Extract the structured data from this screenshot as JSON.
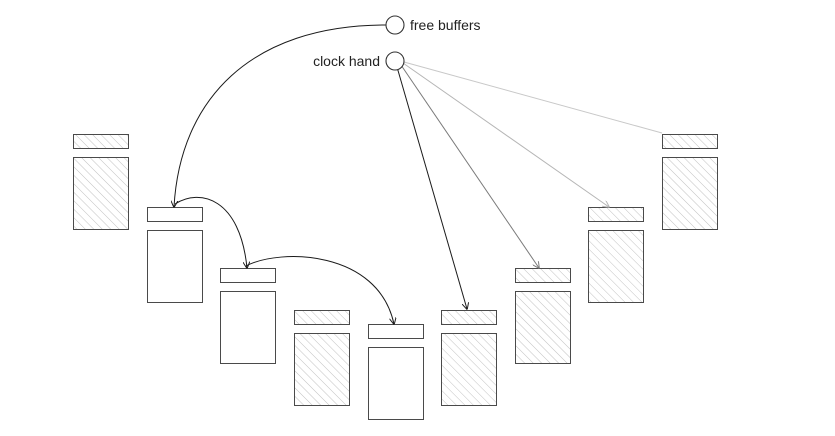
{
  "labels": {
    "free_buffers": "free buffers",
    "clock_hand": "clock hand"
  },
  "colors": {
    "stroke": "#4a4a4a",
    "hatch": "#bdbdbd",
    "arrow_dark": "#1a1a1a",
    "arrow_mid": "#7a7a7a",
    "arrow_light": "#b5b5b5"
  },
  "buffers": [
    {
      "id": 1,
      "used": true
    },
    {
      "id": 2,
      "used": false
    },
    {
      "id": 3,
      "used": false
    },
    {
      "id": 4,
      "used": true
    },
    {
      "id": 5,
      "used": false
    },
    {
      "id": 6,
      "used": true
    },
    {
      "id": 7,
      "used": true
    },
    {
      "id": 8,
      "used": true
    },
    {
      "id": 9,
      "used": true
    }
  ],
  "free_list": [
    2,
    3,
    5
  ],
  "clock_targets": [
    {
      "buffer": 6,
      "shade": "dark"
    },
    {
      "buffer": 7,
      "shade": "mid"
    },
    {
      "buffer": 8,
      "shade": "light"
    },
    {
      "buffer": 9,
      "shade": "light"
    }
  ]
}
